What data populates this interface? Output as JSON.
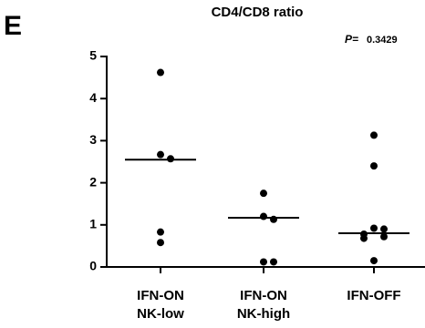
{
  "chart_data": {
    "type": "dotplot",
    "panel_label": "E",
    "title": "CD4/CD8 ratio",
    "p_label": "P=",
    "p_value": 0.3429,
    "categories": [
      "IFN-ON\nNK-low",
      "IFN-ON\nNK-high",
      "IFN-OFF"
    ],
    "values": [
      [
        4.62,
        2.67,
        2.57,
        0.83,
        0.58
      ],
      [
        1.75,
        1.2,
        1.13,
        0.12,
        0.12
      ],
      [
        3.13,
        2.4,
        0.92,
        0.9,
        0.78,
        0.72,
        0.68,
        0.15
      ]
    ],
    "medians": [
      2.55,
      1.17,
      0.8
    ],
    "color": "#000000",
    "ylim": [
      0,
      5
    ],
    "yticks": [
      0,
      1,
      2,
      3,
      4,
      5
    ]
  }
}
